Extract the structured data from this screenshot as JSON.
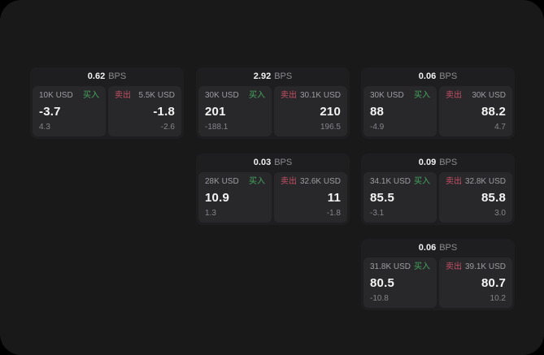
{
  "colors": {
    "outer_bg": "#000000",
    "panel_bg": "#191919",
    "card_bg": "#1e1e20",
    "tile_bg": "#28282b",
    "buy_green": "#46a55f",
    "sell_red": "#c44f63",
    "primary_text": "#f5f5f6",
    "muted_text": "#9d9da2",
    "faint_text": "#85858a"
  },
  "labels": {
    "bps_unit": "BPS",
    "buy": "买入",
    "sell": "卖出"
  },
  "cards": [
    {
      "bps": "0.62",
      "buy": {
        "amount": "10K USD",
        "price": "-3.7",
        "change": "4.3"
      },
      "sell": {
        "amount": "5.5K USD",
        "price": "-1.8",
        "change": "-2.6"
      }
    },
    {
      "bps": "2.92",
      "buy": {
        "amount": "30K USD",
        "price": "201",
        "change": "-188.1"
      },
      "sell": {
        "amount": "30.1K USD",
        "price": "210",
        "change": "196.5"
      }
    },
    {
      "bps": "0.06",
      "buy": {
        "amount": "30K USD",
        "price": "88",
        "change": "-4.9"
      },
      "sell": {
        "amount": "30K USD",
        "price": "88.2",
        "change": "4.7"
      }
    },
    {
      "bps": "0.03",
      "buy": {
        "amount": "28K USD",
        "price": "10.9",
        "change": "1.3"
      },
      "sell": {
        "amount": "32.6K USD",
        "price": "11",
        "change": "-1.8"
      }
    },
    {
      "bps": "0.09",
      "buy": {
        "amount": "34.1K USD",
        "price": "85.5",
        "change": "-3.1"
      },
      "sell": {
        "amount": "32.8K USD",
        "price": "85.8",
        "change": "3.0"
      }
    },
    {
      "bps": "0.06",
      "buy": {
        "amount": "31.8K USD",
        "price": "80.5",
        "change": "-10.8"
      },
      "sell": {
        "amount": "39.1K USD",
        "price": "80.7",
        "change": "10.2"
      }
    }
  ]
}
